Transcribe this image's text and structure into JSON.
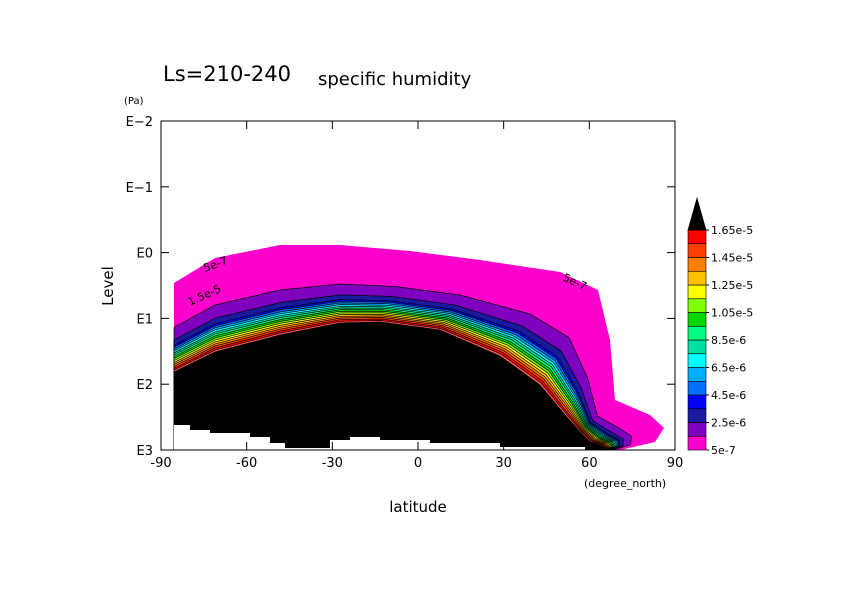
{
  "chart_data": {
    "type": "contour",
    "title": "Ls=210-240",
    "subtitle": "specific humidity",
    "xlabel": "latitude",
    "xunit": "(degree_north)",
    "ylabel": "Level",
    "yunit": "(Pa)",
    "xlim": [
      -90,
      90
    ],
    "xticks": [
      -90,
      -60,
      -30,
      0,
      30,
      60,
      90
    ],
    "ylim": [
      0.01,
      1000
    ],
    "ylog": true,
    "yinvert": true,
    "yticks": [
      {
        "value": 0.01,
        "label": "E−2"
      },
      {
        "value": 0.1,
        "label": "E−1"
      },
      {
        "value": 1,
        "label": "E0"
      },
      {
        "value": 10,
        "label": "E1"
      },
      {
        "value": 100,
        "label": "E2"
      },
      {
        "value": 1000,
        "label": "E3"
      }
    ],
    "levels": [
      5e-07,
      1.5e-06,
      2.5e-06,
      3.5e-06,
      4.5e-06,
      5.5e-06,
      6.5e-06,
      7.5e-06,
      8.5e-06,
      9.5e-06,
      1.05e-05,
      1.15e-05,
      1.25e-05,
      1.35e-05,
      1.45e-05,
      1.55e-05,
      1.65e-05
    ],
    "colors": [
      "#ff00cc",
      "#8000c0",
      "#1a1aa0",
      "#0000ff",
      "#0070ff",
      "#00b0ff",
      "#00ffff",
      "#00e0a0",
      "#00ff80",
      "#00d800",
      "#80ff00",
      "#ffff00",
      "#ffc000",
      "#ff8000",
      "#ff4000",
      "#ff0000",
      "#ff5a5a"
    ],
    "colorbar_ticks": [
      {
        "value": 1.65e-05,
        "label": "1.65e-5"
      },
      {
        "value": 1.45e-05,
        "label": "1.45e-5"
      },
      {
        "value": 1.25e-05,
        "label": "1.25e-5"
      },
      {
        "value": 1.05e-05,
        "label": "1.05e-5"
      },
      {
        "value": 8.5e-06,
        "label": "8.5e-6"
      },
      {
        "value": 6.5e-06,
        "label": "6.5e-6"
      },
      {
        "value": 4.5e-06,
        "label": "4.5e-6"
      },
      {
        "value": 2.5e-06,
        "label": "2.5e-6"
      },
      {
        "value": 5e-07,
        "label": "5e-7"
      }
    ],
    "annotations": [
      "5e-7",
      "1.5e-5",
      "5e-7"
    ]
  }
}
